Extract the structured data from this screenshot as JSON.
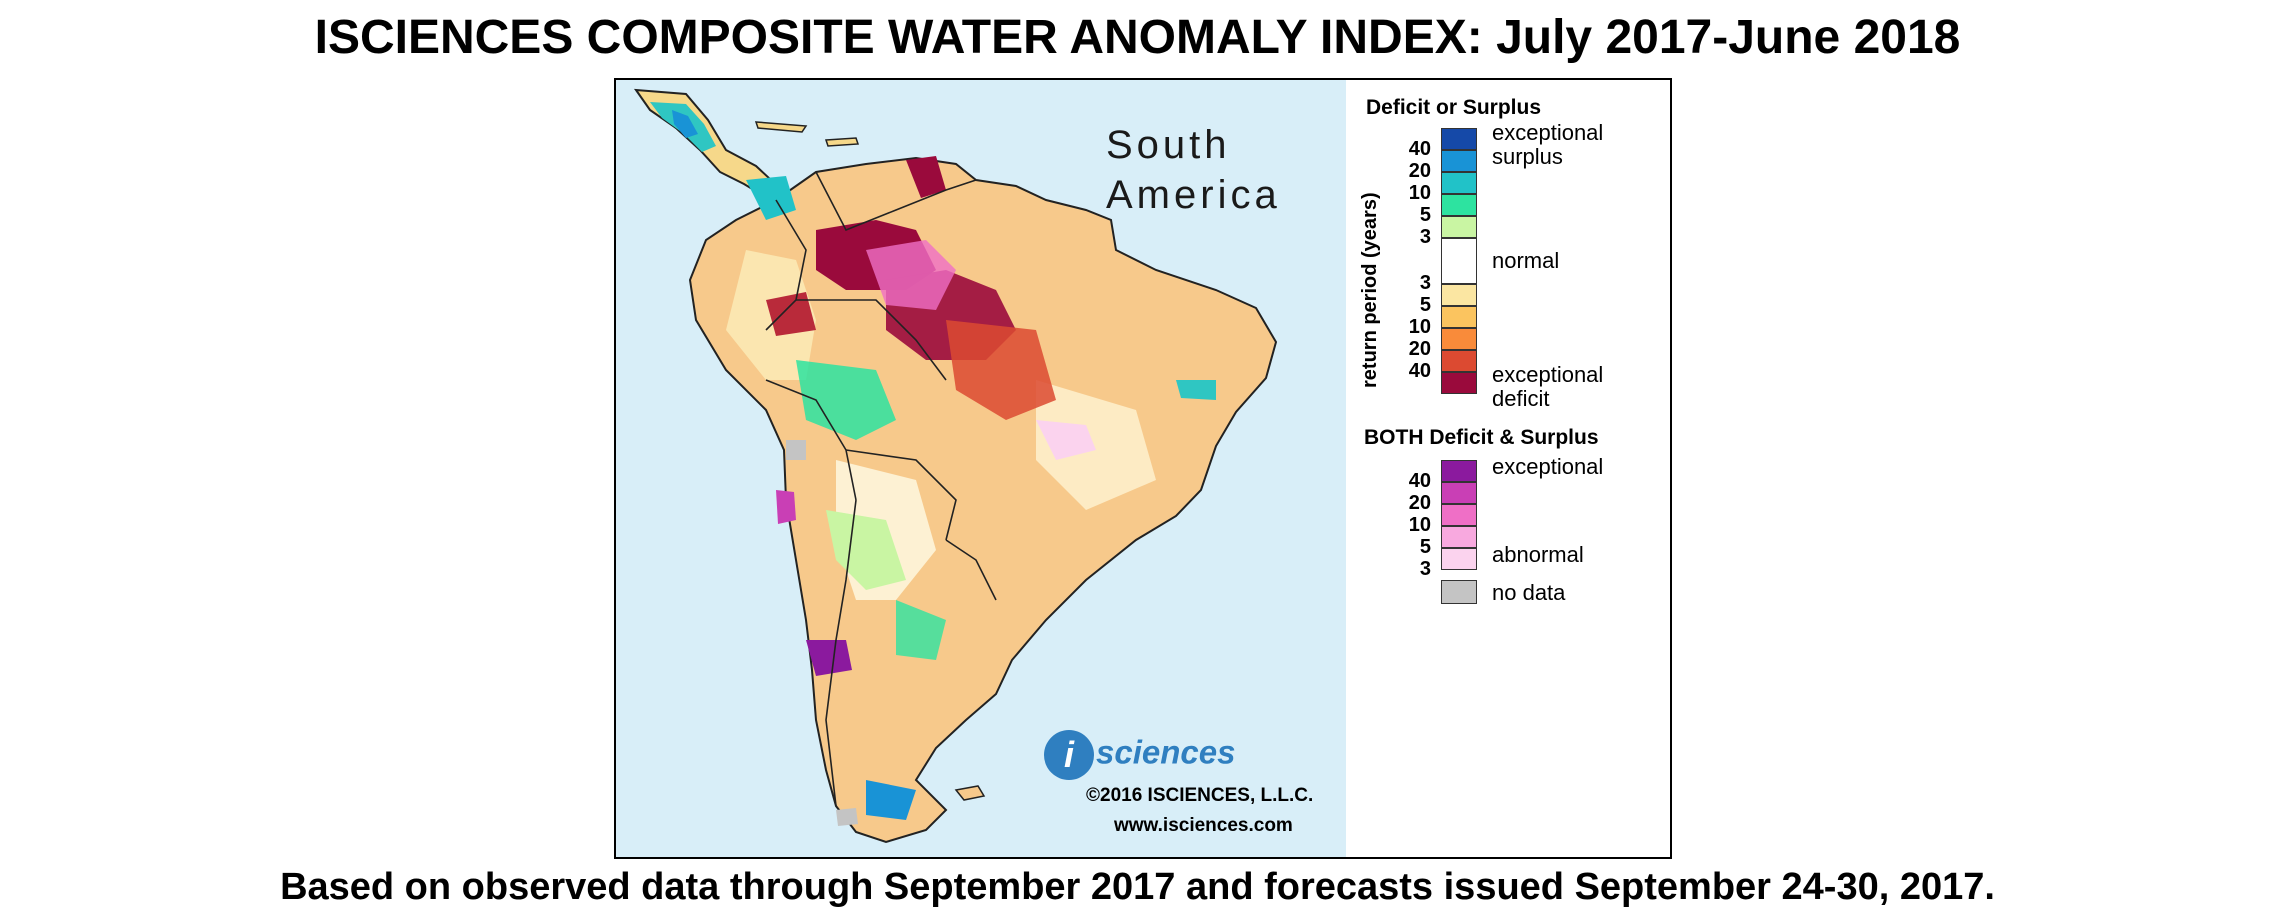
{
  "title": "ISCIENCES COMPOSITE WATER ANOMALY INDEX: July 2017-June 2018",
  "subtitle": "Based on observed data through September 2017 and forecasts issued September 24-30, 2017.",
  "map": {
    "region_label_line1": "South",
    "region_label_line2": "America",
    "brand_icon": "i",
    "brand_name": "sciences",
    "copyright": "©2016 ISCIENCES, L.L.C.",
    "website": "www.isciences.com",
    "ocean_color": "#d8eef8"
  },
  "legend": {
    "deficit_surplus_heading": "Deficit or Surplus",
    "axis_label": "return period (years)",
    "surplus_scale": [
      {
        "tick": "",
        "color": "#1549a8"
      },
      {
        "tick": "40",
        "color": "#1993d6"
      },
      {
        "tick": "20",
        "color": "#21c2c8"
      },
      {
        "tick": "10",
        "color": "#2de3a0"
      },
      {
        "tick": "5",
        "color": "#c9f5a3"
      }
    ],
    "normal_tick_top": "3",
    "normal_tick_bottom": "3",
    "deficit_scale": [
      {
        "tick": "5",
        "color": "#fbe6a2"
      },
      {
        "tick": "10",
        "color": "#fbc45f"
      },
      {
        "tick": "20",
        "color": "#f98b3a"
      },
      {
        "tick": "40",
        "color": "#dc4a31"
      },
      {
        "tick": "",
        "color": "#9a0a3c"
      }
    ],
    "label_exceptional_surplus_1": "exceptional",
    "label_exceptional_surplus_2": "surplus",
    "label_normal": "normal",
    "label_exceptional_deficit_1": "exceptional",
    "label_exceptional_deficit_2": "deficit",
    "both_heading": "BOTH Deficit & Surplus",
    "both_scale": [
      {
        "tick": "40",
        "color": "#8b1a9e"
      },
      {
        "tick": "20",
        "color": "#c93fb5"
      },
      {
        "tick": "10",
        "color": "#ef6fc6"
      },
      {
        "tick": "5",
        "color": "#f8a9df"
      },
      {
        "tick": "3",
        "color": "#fbd3ee"
      }
    ],
    "label_both_exceptional": "exceptional",
    "label_both_abnormal": "abnormal",
    "nodata_color": "#c4c4c4",
    "label_nodata": "no data"
  }
}
